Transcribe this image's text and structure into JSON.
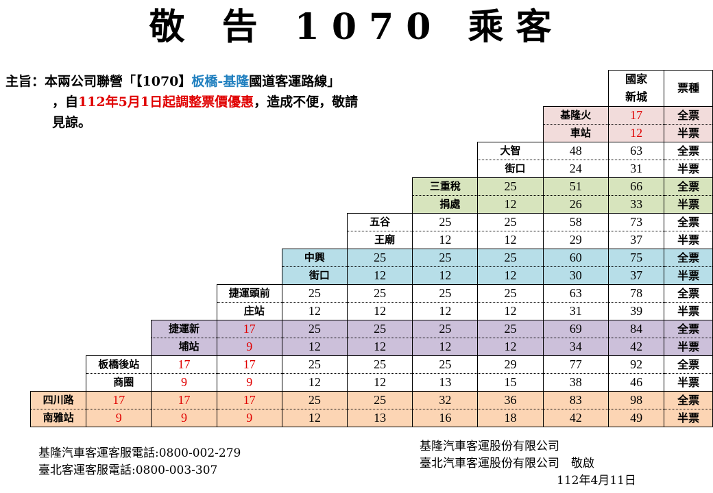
{
  "title": "敬 告 1070 乘客",
  "notice": {
    "prefix": "主旨：本兩公司聯營「【1070】",
    "route": "板橋-基隆",
    "mid": "國道客運路線」",
    "line2_start": "，自",
    "change": "112年5月1日起調整票價優惠",
    "line2_end": "，造成不便，敬請",
    "line3": "見諒。"
  },
  "table": {
    "header": [
      "國家\n新城",
      "票種"
    ],
    "ticket_types": [
      "全票",
      "半票"
    ],
    "rows": [
      {
        "station": [
          "基隆火",
          "車站"
        ],
        "full": [
          "17"
        ],
        "half": [
          "12"
        ],
        "red": [
          0
        ]
      },
      {
        "station": [
          "大智",
          "街口"
        ],
        "full": [
          "48",
          "63"
        ],
        "half": [
          "24",
          "31"
        ],
        "red": []
      },
      {
        "station": [
          "三重稅",
          "捐處"
        ],
        "full": [
          "25",
          "51",
          "66"
        ],
        "half": [
          "12",
          "26",
          "33"
        ],
        "red": []
      },
      {
        "station": [
          "五谷",
          "王廟"
        ],
        "full": [
          "25",
          "25",
          "58",
          "73"
        ],
        "half": [
          "12",
          "12",
          "29",
          "37"
        ],
        "red": []
      },
      {
        "station": [
          "中興",
          "街口"
        ],
        "full": [
          "25",
          "25",
          "25",
          "60",
          "75"
        ],
        "half": [
          "12",
          "12",
          "12",
          "30",
          "37"
        ],
        "red": []
      },
      {
        "station": [
          "捷運頭前",
          "庄站"
        ],
        "full": [
          "25",
          "25",
          "25",
          "25",
          "63",
          "78"
        ],
        "half": [
          "12",
          "12",
          "12",
          "12",
          "31",
          "39"
        ],
        "red": []
      },
      {
        "station": [
          "捷運新",
          "埔站"
        ],
        "full": [
          "17",
          "25",
          "25",
          "25",
          "25",
          "69",
          "84"
        ],
        "half": [
          "9",
          "12",
          "12",
          "12",
          "12",
          "34",
          "42"
        ],
        "red": [
          0
        ]
      },
      {
        "station": [
          "板橋後站",
          "商圈"
        ],
        "full": [
          "17",
          "17",
          "25",
          "25",
          "25",
          "29",
          "77",
          "92"
        ],
        "half": [
          "9",
          "9",
          "12",
          "12",
          "13",
          "15",
          "38",
          "46"
        ],
        "red": [
          0,
          1
        ]
      },
      {
        "station": [
          "四川路",
          "南雅站"
        ],
        "full": [
          "17",
          "17",
          "17",
          "25",
          "25",
          "32",
          "36",
          "83",
          "98"
        ],
        "half": [
          "9",
          "9",
          "9",
          "12",
          "13",
          "16",
          "18",
          "42",
          "49"
        ],
        "red": [
          0,
          1,
          2
        ]
      }
    ]
  },
  "phones": [
    "基隆汽車客運客服電話:0800-002-279",
    "臺北客運客服電話:0800-003-307"
  ],
  "companies": {
    "line1": "基隆汽車客運股份有限公司",
    "line2": "臺北汽車客運股份有限公司　敬啟",
    "date": "112年4月11日"
  },
  "colors": {
    "pink": "#f2dcdb",
    "green": "#d7e4bd",
    "blue": "#b7dee8",
    "purple": "#ccc0da",
    "orange": "#fcd5b4",
    "highlight_red": "#e00000",
    "route_blue": "#1f7fbf"
  }
}
